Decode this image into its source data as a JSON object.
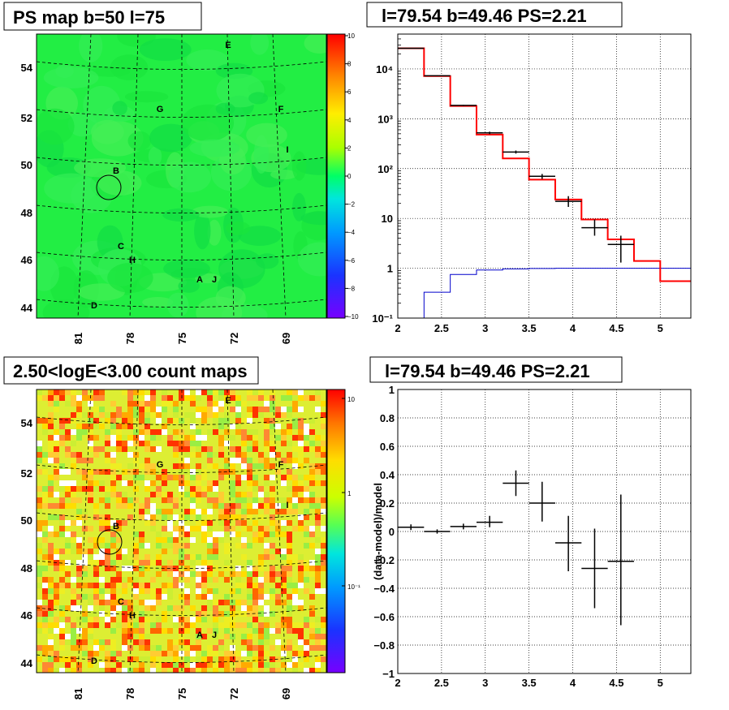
{
  "panels": {
    "ps_map": {
      "title": "PS map b=50 l=75",
      "lon_ticks": [
        "81",
        "78",
        "75",
        "72",
        "69"
      ],
      "lat_ticks": [
        "54",
        "52",
        "50",
        "48",
        "46",
        "44"
      ],
      "colorbar_ticks": [
        "10",
        "8",
        "6",
        "4",
        "2",
        "0",
        "−2",
        "−4",
        "−6",
        "−8",
        "−10"
      ],
      "source_labels": [
        "E",
        "G",
        "F",
        "I",
        "B",
        "C",
        "H",
        "A",
        "J",
        "D"
      ]
    },
    "count_map": {
      "title": "2.50<logE<3.00 count maps",
      "lon_ticks": [
        "81",
        "78",
        "75",
        "72",
        "69"
      ],
      "lat_ticks": [
        "54",
        "52",
        "50",
        "48",
        "46",
        "44"
      ],
      "colorbar_ticks": [
        "10",
        "1",
        "10⁻¹"
      ],
      "source_labels": [
        "E",
        "G",
        "F",
        "I",
        "B",
        "C",
        "H",
        "A",
        "J",
        "D"
      ]
    },
    "spectrum": {
      "title": "l=79.54 b=49.46 PS=2.21",
      "x_ticks": [
        "2",
        "2.5",
        "3",
        "3.5",
        "4",
        "4.5",
        "5"
      ],
      "y_ticks": [
        "10⁻¹",
        "1",
        "10",
        "10²",
        "10³",
        "10⁴"
      ]
    },
    "residual": {
      "title": "l=79.54 b=49.46 PS=2.21",
      "ylabel": "(data-model)/model",
      "x_ticks": [
        "2",
        "2.5",
        "3",
        "3.5",
        "4",
        "4.5",
        "5"
      ],
      "y_ticks": [
        "1",
        "0.8",
        "0.6",
        "0.4",
        "0.2",
        "0",
        "−0.2",
        "−0.4",
        "−0.6",
        "−0.8",
        "−1"
      ]
    }
  },
  "colors": {
    "model_total": "#ff0000",
    "model_bkg": "#0000cc",
    "data": "#000000",
    "map_base": "#22ee44"
  },
  "chart_data": [
    {
      "type": "line",
      "name": "spectrum",
      "title": "l=79.54 b=49.46 PS=2.21",
      "x_scale": "linear",
      "y_scale": "log",
      "xlim": [
        2,
        5.35
      ],
      "ylim": [
        0.1,
        50000
      ],
      "grid": true,
      "bin_edges": [
        2.0,
        2.3,
        2.6,
        2.9,
        3.2,
        3.5,
        3.8,
        4.1,
        4.4,
        4.7,
        5.0,
        5.35
      ],
      "series": [
        {
          "values": [
            26000,
            7200,
            1800,
            480,
            160,
            60,
            24,
            9.5,
            3.8,
            1.4,
            0.55
          ]
        },
        {
          "values": [
            0.02,
            0.33,
            0.75,
            0.92,
            0.97,
            0.99,
            1.0,
            1.0,
            1.0,
            1.0,
            1.0
          ]
        },
        {
          "points": [
            {
              "x": 2.15,
              "y": 26000,
              "ylo": 25800,
              "yhi": 26200
            },
            {
              "x": 2.45,
              "y": 7300,
              "ylo": 7200,
              "yhi": 7400
            },
            {
              "x": 2.75,
              "y": 1850,
              "ylo": 1800,
              "yhi": 1900
            },
            {
              "x": 3.05,
              "y": 520,
              "ylo": 490,
              "yhi": 550
            },
            {
              "x": 3.35,
              "y": 215,
              "ylo": 200,
              "yhi": 230
            },
            {
              "x": 3.65,
              "y": 70,
              "ylo": 62,
              "yhi": 78
            },
            {
              "x": 3.95,
              "y": 22,
              "ylo": 17,
              "yhi": 28
            },
            {
              "x": 4.25,
              "y": 6.5,
              "ylo": 4.5,
              "yhi": 9.5
            },
            {
              "x": 4.55,
              "y": 3.0,
              "ylo": 1.3,
              "yhi": 4.5
            }
          ]
        }
      ]
    },
    {
      "type": "scatter",
      "name": "residual",
      "title": "l=79.54 b=49.46 PS=2.21",
      "ylabel": "(data-model)/model",
      "xlim": [
        2,
        5.35
      ],
      "ylim": [
        -1,
        1
      ],
      "grid": true,
      "points": [
        {
          "x": 2.15,
          "y": 0.03,
          "ylo": 0.01,
          "yhi": 0.05
        },
        {
          "x": 2.45,
          "y": 0.0,
          "ylo": -0.015,
          "yhi": 0.015
        },
        {
          "x": 2.75,
          "y": 0.035,
          "ylo": 0.015,
          "yhi": 0.055
        },
        {
          "x": 3.05,
          "y": 0.065,
          "ylo": 0.03,
          "yhi": 0.11
        },
        {
          "x": 3.35,
          "y": 0.34,
          "ylo": 0.25,
          "yhi": 0.43
        },
        {
          "x": 3.65,
          "y": 0.2,
          "ylo": 0.07,
          "yhi": 0.35
        },
        {
          "x": 3.95,
          "y": -0.08,
          "ylo": -0.28,
          "yhi": 0.11
        },
        {
          "x": 4.25,
          "y": -0.26,
          "ylo": -0.54,
          "yhi": 0.02
        },
        {
          "x": 4.55,
          "y": -0.21,
          "ylo": -0.66,
          "yhi": 0.26
        }
      ],
      "xerr": 0.15
    }
  ]
}
